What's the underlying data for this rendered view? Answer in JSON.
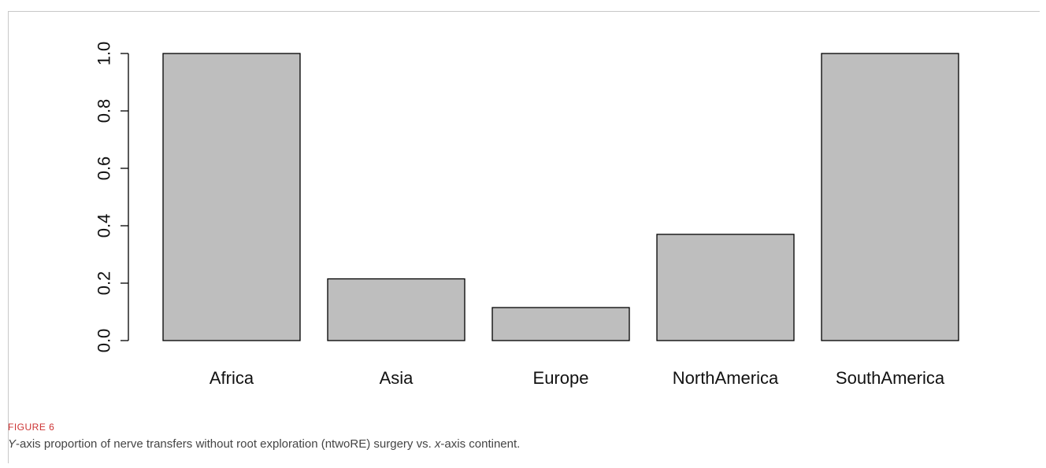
{
  "figure": {
    "label": "FIGURE 6",
    "caption": {
      "y_var": "Y",
      "part1": "-axis proportion of nerve transfers without root exploration (ntwoRE) surgery vs. ",
      "x_var": "x",
      "part2": "-axis continent."
    }
  },
  "chart_data": {
    "type": "bar",
    "categories": [
      "Africa",
      "Asia",
      "Europe",
      "NorthAmerica",
      "SouthAmerica"
    ],
    "values": [
      1.0,
      0.215,
      0.115,
      0.37,
      1.0
    ],
    "title": "",
    "xlabel": "",
    "ylabel": "",
    "ylim": [
      0,
      1.0
    ],
    "yticks": [
      "0.0",
      "0.2",
      "0.4",
      "0.6",
      "0.8",
      "1.0"
    ],
    "bar_color": "#bebebe",
    "grid": false,
    "legend": "none"
  }
}
